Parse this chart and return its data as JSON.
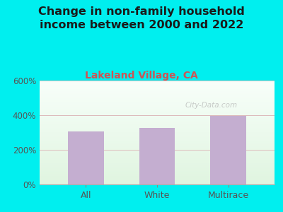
{
  "title": "Change in non-family household\nincome between 2000 and 2022",
  "subtitle": "Lakeland Village, CA",
  "categories": [
    "All",
    "White",
    "Multirace"
  ],
  "values": [
    305,
    325,
    395
  ],
  "bar_color": "#c4aed0",
  "title_fontsize": 11.5,
  "subtitle_fontsize": 10,
  "subtitle_color": "#cc5555",
  "title_color": "#1a1a1a",
  "background_outer": "#00efef",
  "ylim": [
    0,
    600
  ],
  "yticks": [
    0,
    200,
    400,
    600
  ],
  "grid_color": "#ddbbbb",
  "watermark": "City-Data.com",
  "bar_width": 0.5
}
